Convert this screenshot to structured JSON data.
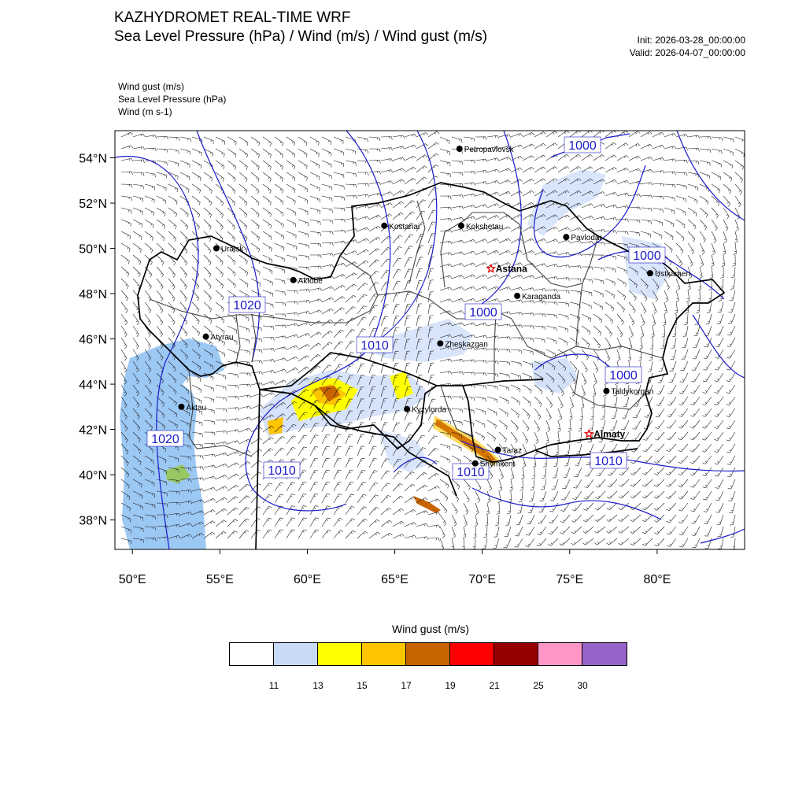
{
  "header": {
    "title": "KAZHYDROMET REAL-TIME WRF",
    "subtitle": "Sea Level Pressure  (hPa) / Wind  (m/s) / Wind gust  (m/s)",
    "init": "Init: 2026-03-28_00:00:00",
    "valid": "Valid: 2026-04-07_00:00:00"
  },
  "layers": [
    "Wind gust   (m/s)",
    "Sea Level Pressure   (hPa)",
    "Wind   (m s-1)"
  ],
  "axes": {
    "lat_labels": [
      "54°N",
      "52°N",
      "50°N",
      "48°N",
      "46°N",
      "44°N",
      "42°N",
      "40°N",
      "38°N"
    ],
    "lon_labels": [
      "50°E",
      "55°E",
      "60°E",
      "65°E",
      "70°E",
      "75°E",
      "80°E"
    ],
    "lon_range": [
      49,
      85
    ],
    "lat_range": [
      36.7,
      55.2
    ]
  },
  "isobar_labels": [
    "1000",
    "1000",
    "1000",
    "1020",
    "1010",
    "1000",
    "1020",
    "1010",
    "1010",
    "1010"
  ],
  "cities": [
    {
      "name": "Petropavlovsk",
      "lon": 68.7,
      "lat": 54.4,
      "capital": false
    },
    {
      "name": "Kostanai",
      "lon": 64.4,
      "lat": 51.0,
      "capital": false
    },
    {
      "name": "Kokshetau",
      "lon": 68.8,
      "lat": 51.0,
      "capital": false
    },
    {
      "name": "Pavlodar",
      "lon": 74.8,
      "lat": 50.5,
      "capital": false
    },
    {
      "name": "Uralsk",
      "lon": 54.8,
      "lat": 50.0,
      "capital": false
    },
    {
      "name": "Ustkamen",
      "lon": 79.6,
      "lat": 48.9,
      "capital": false
    },
    {
      "name": "Aktobe",
      "lon": 59.2,
      "lat": 48.6,
      "capital": false
    },
    {
      "name": "Astana",
      "lon": 70.5,
      "lat": 49.1,
      "capital": true
    },
    {
      "name": "Karaganda",
      "lon": 72.0,
      "lat": 47.9,
      "capital": false
    },
    {
      "name": "Atyrau",
      "lon": 54.2,
      "lat": 46.1,
      "capital": false
    },
    {
      "name": "Zheskazgan",
      "lon": 67.6,
      "lat": 45.8,
      "capital": false
    },
    {
      "name": "Taldykorgan",
      "lon": 77.1,
      "lat": 43.7,
      "capital": false
    },
    {
      "name": "Aktau",
      "lon": 52.8,
      "lat": 43.0,
      "capital": false
    },
    {
      "name": "Kyzylorda",
      "lon": 65.7,
      "lat": 42.9,
      "capital": false
    },
    {
      "name": "Almaty",
      "lon": 76.1,
      "lat": 41.8,
      "capital": true
    },
    {
      "name": "Taraz",
      "lon": 70.9,
      "lat": 41.1,
      "capital": false
    },
    {
      "name": "Shymkent",
      "lon": 69.6,
      "lat": 40.5,
      "capital": false
    }
  ],
  "colorbar": {
    "title": "Wind gust (m/s)",
    "colors": [
      "#ffffff",
      "#c8daf8",
      "#ffff00",
      "#ffc400",
      "#c86400",
      "#ff0000",
      "#960000",
      "#ff96c8",
      "#9664c8"
    ],
    "ticks": [
      "11",
      "13",
      "15",
      "17",
      "19",
      "21",
      "25",
      "30"
    ]
  },
  "style": {
    "isobar_color": "#1a1acc",
    "border_color": "#000000",
    "region_color": "#444444",
    "water_color": "#9cc8f4"
  }
}
